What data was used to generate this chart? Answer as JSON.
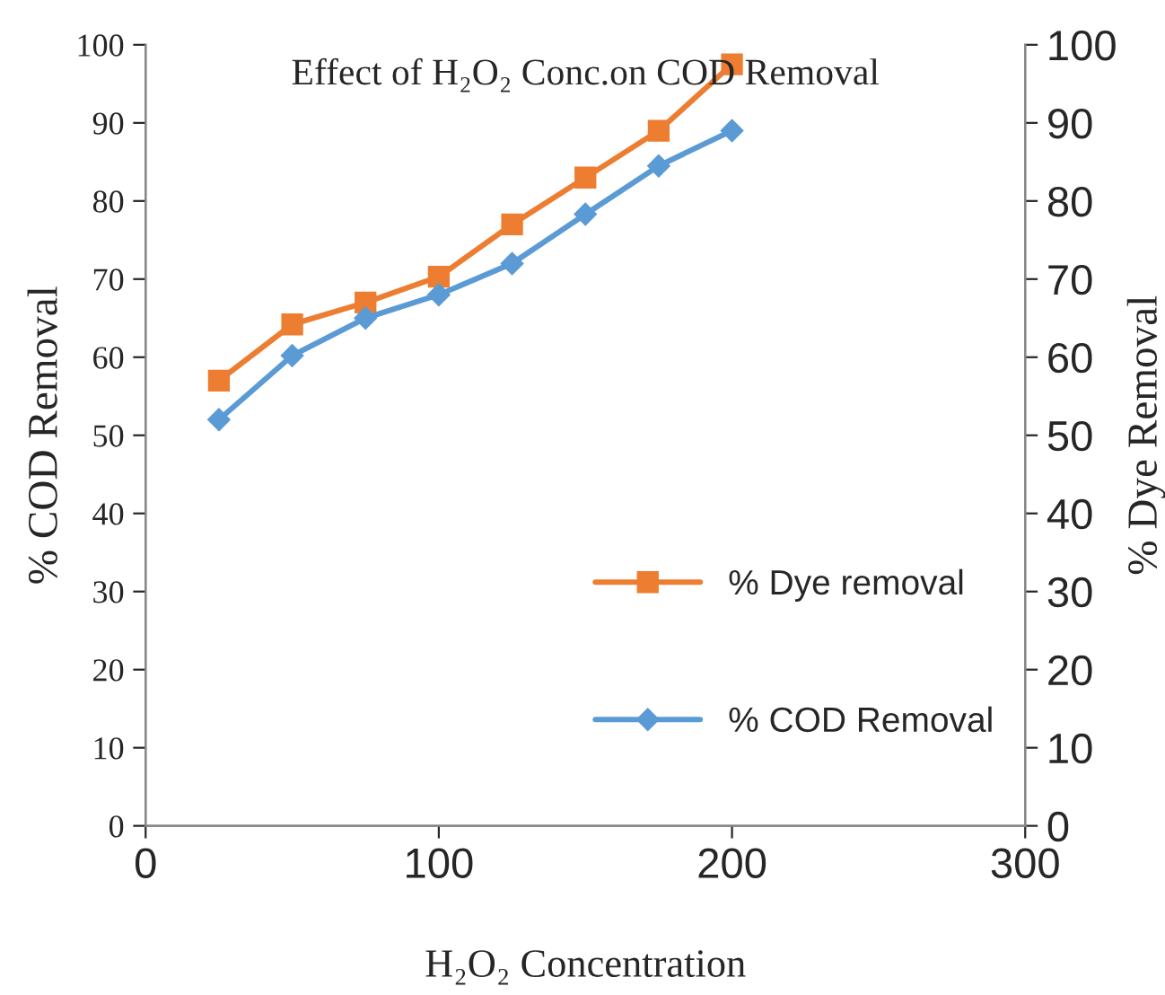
{
  "chart_data": {
    "type": "line",
    "title": "Effect of H₂O₂ Conc.on COD Removal",
    "xlabel": "H₂O₂ Concentration",
    "ylabel": "% COD Removal",
    "y2label": "% Dye Removal",
    "x": [
      25,
      50,
      75,
      100,
      125,
      150,
      175,
      200
    ],
    "series": [
      {
        "name": "% Dye removal",
        "color": "#ed7d31",
        "marker": "square",
        "values": [
          57,
          64.2,
          67,
          70.3,
          77,
          83,
          89,
          97.5
        ]
      },
      {
        "name": "% COD Removal",
        "color": "#5b9bd5",
        "marker": "diamond",
        "values": [
          52,
          60.2,
          65,
          68,
          72,
          78.3,
          84.5,
          89
        ]
      }
    ],
    "xlim": [
      0,
      300
    ],
    "xticks": [
      0,
      100,
      200,
      300
    ],
    "ylim": [
      0,
      100
    ],
    "yticks": [
      0,
      10,
      20,
      30,
      40,
      50,
      60,
      70,
      80,
      90,
      100
    ],
    "y2lim": [
      0,
      100
    ],
    "y2ticks": [
      0,
      10,
      20,
      30,
      40,
      50,
      60,
      70,
      80,
      90,
      100
    ],
    "grid": false,
    "legend": "right",
    "line_style": "solid"
  }
}
